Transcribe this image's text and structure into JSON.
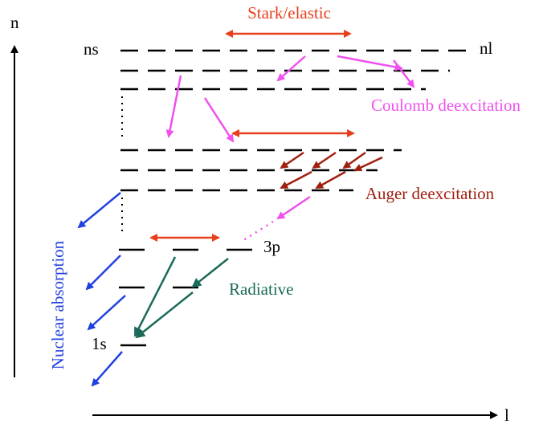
{
  "axes": {
    "n": "n",
    "l": "l"
  },
  "levels": {
    "ns": "ns",
    "nl": "nl",
    "p3": "3p",
    "s1": "1s"
  },
  "processes": {
    "stark": "Stark/elastic",
    "coulomb": "Coulomb deexcitation",
    "auger": "Auger deexcitation",
    "radiative": "Radiative",
    "nuclear": "Nuclear absorption"
  }
}
